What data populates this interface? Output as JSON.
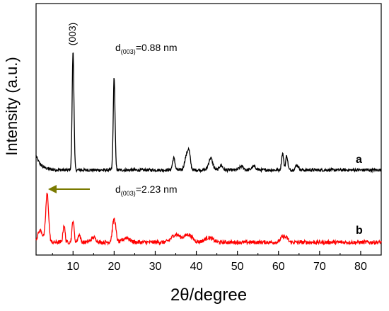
{
  "chart_data": {
    "type": "line",
    "title": "",
    "xlabel": "2θ/degree",
    "ylabel": "Intensity (a.u.)",
    "xlim": [
      1,
      85
    ],
    "x_ticks": [
      10,
      20,
      30,
      40,
      50,
      60,
      70,
      80
    ],
    "y_ticks_shown": false,
    "grid": false,
    "legend": "none",
    "colors": {
      "a": "#000000",
      "b": "#ff0000",
      "arrow": "#7a7a00"
    },
    "series": [
      {
        "label": "a",
        "peaks": [
          {
            "x": 10.0,
            "h": 1.0,
            "w": 0.22
          },
          {
            "x": 20.0,
            "h": 0.78,
            "w": 0.22
          },
          {
            "x": 34.5,
            "h": 0.1,
            "w": 0.3
          },
          {
            "x": 37.5,
            "h": 0.1,
            "w": 0.4
          },
          {
            "x": 38.2,
            "h": 0.15,
            "w": 0.35
          },
          {
            "x": 43.5,
            "h": 0.1,
            "w": 0.5
          },
          {
            "x": 46.0,
            "h": 0.04,
            "w": 0.4
          },
          {
            "x": 51.0,
            "h": 0.03,
            "w": 0.5
          },
          {
            "x": 54.0,
            "h": 0.03,
            "w": 0.5
          },
          {
            "x": 61.0,
            "h": 0.14,
            "w": 0.25
          },
          {
            "x": 62.0,
            "h": 0.12,
            "w": 0.25
          },
          {
            "x": 64.5,
            "h": 0.04,
            "w": 0.4
          }
        ]
      },
      {
        "label": "b",
        "peaks": [
          {
            "x": 3.7,
            "h": 0.62,
            "w": 0.35
          },
          {
            "x": 2.0,
            "h": 0.15,
            "w": 0.6
          },
          {
            "x": 7.8,
            "h": 0.22,
            "w": 0.25
          },
          {
            "x": 10.0,
            "h": 0.28,
            "w": 0.25
          },
          {
            "x": 11.5,
            "h": 0.1,
            "w": 0.3
          },
          {
            "x": 15.0,
            "h": 0.06,
            "w": 0.6
          },
          {
            "x": 20.0,
            "h": 0.3,
            "w": 0.4
          },
          {
            "x": 23.0,
            "h": 0.06,
            "w": 0.8
          },
          {
            "x": 35.0,
            "h": 0.1,
            "w": 1.0
          },
          {
            "x": 38.0,
            "h": 0.1,
            "w": 1.0
          },
          {
            "x": 43.0,
            "h": 0.06,
            "w": 1.0
          },
          {
            "x": 61.0,
            "h": 0.07,
            "w": 0.5
          },
          {
            "x": 62.0,
            "h": 0.05,
            "w": 0.4
          }
        ]
      }
    ],
    "annotations": [
      {
        "id": "peak_label",
        "text": "(003)"
      },
      {
        "id": "d_a_main",
        "text": "d",
        "sub": "(003)",
        "rest": "=0.88 nm"
      },
      {
        "id": "d_b_main",
        "text": "d",
        "sub": "(003)",
        "rest": "=2.23 nm"
      }
    ]
  }
}
